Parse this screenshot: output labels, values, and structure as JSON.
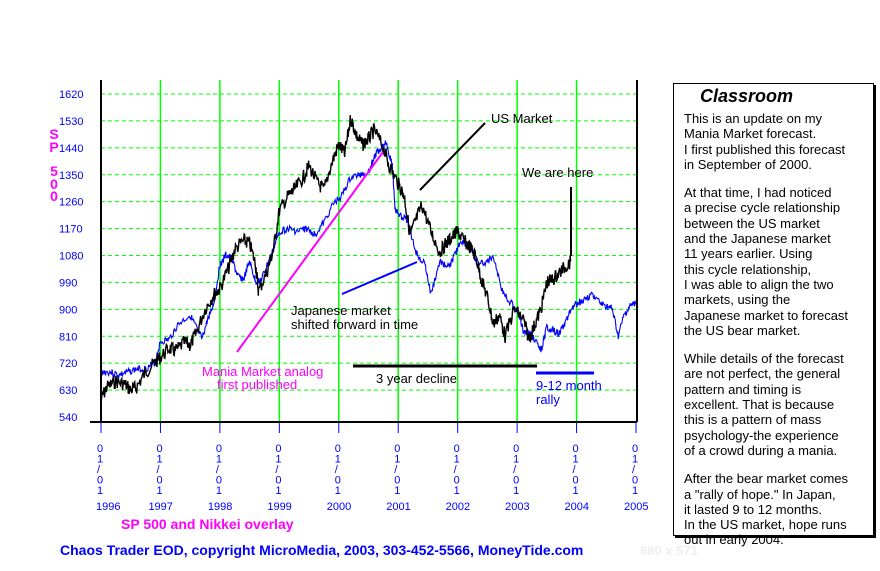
{
  "chart_data": {
    "type": "line",
    "title": "SP 500 and Nikkei overlay",
    "ylabel": "SP 500",
    "ylim": [
      540,
      1620
    ],
    "yticks": [
      1620,
      1530,
      1440,
      1350,
      1260,
      1170,
      1080,
      990,
      900,
      810,
      720,
      630,
      540
    ],
    "xlim": [
      1996,
      2005
    ],
    "xticks": [
      1996,
      1997,
      1998,
      1999,
      2000,
      2001,
      2002,
      2003,
      2004,
      2005
    ],
    "xtick_labels": [
      "1996",
      "1997",
      "1998",
      "1999",
      "2000",
      "2001",
      "2002",
      "2003",
      "2004",
      "2005"
    ],
    "date_label": "01/01",
    "grid": true,
    "series": [
      {
        "name": "US Market (SP 500)",
        "color": "#000000",
        "x": [
          1996.0,
          1996.1,
          1996.25,
          1996.4,
          1996.5,
          1996.6,
          1996.75,
          1996.9,
          1997.0,
          1997.15,
          1997.25,
          1997.4,
          1997.5,
          1997.6,
          1997.75,
          1997.9,
          1998.0,
          1998.15,
          1998.25,
          1998.4,
          1998.5,
          1998.6,
          1998.65,
          1998.8,
          1998.9,
          1999.0,
          1999.15,
          1999.25,
          1999.4,
          1999.5,
          1999.65,
          1999.75,
          1999.9,
          2000.0,
          2000.1,
          2000.2,
          2000.3,
          2000.4,
          2000.5,
          2000.6,
          2000.75,
          2000.85,
          2001.0,
          2001.1,
          2001.2,
          2001.3,
          2001.4,
          2001.55,
          2001.7,
          2001.8,
          2001.9,
          2002.0,
          2002.1,
          2002.2,
          2002.3,
          2002.4,
          2002.5,
          2002.6,
          2002.7,
          2002.8,
          2002.95,
          2003.1,
          2003.2,
          2003.3,
          2003.4,
          2003.5,
          2003.6,
          2003.7,
          2003.8,
          2003.9
        ],
        "values": [
          600,
          640,
          660,
          650,
          630,
          640,
          690,
          720,
          740,
          770,
          760,
          790,
          780,
          820,
          900,
          950,
          970,
          1040,
          1100,
          1130,
          1120,
          1050,
          960,
          1030,
          1100,
          1230,
          1280,
          1300,
          1340,
          1380,
          1320,
          1300,
          1400,
          1450,
          1420,
          1540,
          1480,
          1450,
          1470,
          1500,
          1440,
          1380,
          1320,
          1280,
          1150,
          1200,
          1250,
          1160,
          1090,
          1120,
          1140,
          1160,
          1130,
          1110,
          1080,
          1000,
          940,
          850,
          880,
          810,
          900,
          870,
          800,
          850,
          900,
          990,
          1000,
          1020,
          1040,
          1060
        ]
      },
      {
        "name": "Japanese market shifted forward in time",
        "color": "#0000ff",
        "x": [
          1996.0,
          1996.15,
          1996.3,
          1996.45,
          1996.6,
          1996.75,
          1996.9,
          1997.0,
          1997.15,
          1997.3,
          1997.5,
          1997.6,
          1997.7,
          1997.8,
          1997.9,
          1998.0,
          1998.1,
          1998.2,
          1998.3,
          1998.4,
          1998.5,
          1998.6,
          1998.7,
          1998.8,
          1998.9,
          1999.0,
          1999.15,
          1999.3,
          1999.45,
          1999.6,
          1999.75,
          1999.9,
          2000.05,
          2000.2,
          2000.35,
          2000.5,
          2000.6,
          2000.7,
          2000.8,
          2000.9,
          2000.95,
          2001.05,
          2001.15,
          2001.3,
          2001.45,
          2001.55,
          2001.7,
          2001.85,
          2001.95,
          2002.05,
          2002.2,
          2002.35,
          2002.5,
          2002.6,
          2002.75,
          2002.9,
          2003.0,
          2003.1,
          2003.2,
          2003.3,
          2003.4,
          2003.5,
          2003.6,
          2003.7,
          2003.8,
          2003.9,
          2004.0,
          2004.1,
          2004.25,
          2004.4,
          2004.5,
          2004.6,
          2004.7,
          2004.8,
          2004.9,
          2005.0
        ],
        "values": [
          690,
          690,
          680,
          690,
          700,
          700,
          720,
          790,
          800,
          850,
          880,
          840,
          800,
          870,
          920,
          1050,
          1080,
          1070,
          1010,
          1000,
          1060,
          990,
          1000,
          1050,
          1100,
          1160,
          1170,
          1160,
          1170,
          1150,
          1190,
          1250,
          1280,
          1340,
          1350,
          1360,
          1410,
          1440,
          1460,
          1380,
          1230,
          1210,
          1200,
          1090,
          1050,
          950,
          1060,
          1040,
          1080,
          1130,
          1110,
          1050,
          1060,
          1080,
          960,
          920,
          900,
          830,
          820,
          800,
          760,
          840,
          830,
          820,
          850,
          900,
          920,
          930,
          950,
          920,
          910,
          900,
          810,
          880,
          910,
          920
        ]
      }
    ],
    "annotations": {
      "us_market": "US Market",
      "we_are_here": "We are here",
      "japanese_1": "Japanese market",
      "japanese_2": "shifted forward in time",
      "mania_1": "Mania Market analog",
      "mania_2": "first published",
      "decline": "3 year decline",
      "rally_1": "9-12 month",
      "rally_2": "rally"
    },
    "colors": {
      "grid": "#00ff00",
      "axis_text": "#0000ff",
      "mania": "#ff00ff"
    }
  },
  "ylabel_chars": [
    "S",
    "P",
    "5",
    "0",
    "0"
  ],
  "panel": {
    "title": "Classroom",
    "paragraphs": [
      "This is an update on my\nMania Market forecast.\nI first published this forecast\nin September of 2000.",
      "At that time, I had noticed\na precise cycle relationship\nbetween the US market\nand the Japanese market\n11 years earlier. Using\nthis cycle relationship,\nI was able to align the two\nmarkets, using the\nJapanese market to forecast\nthe US bear market.",
      "While details of the forecast\nare not perfect, the general\npattern and timing is\nexcellent. That is because\nthis is a pattern of mass\npsychology-the experience\nof a crowd during a mania.",
      "After the bear market comes\na \"rally of hope.\" In Japan,\nit lasted 9 to 12 months.\nIn the US market, hope runs\nout in early 2004."
    ]
  },
  "footer": "Chaos Trader EOD, copyright MicroMedia, 2003, 303-452-5566, MoneyTide.com",
  "dimensions_label": "880 x 571"
}
